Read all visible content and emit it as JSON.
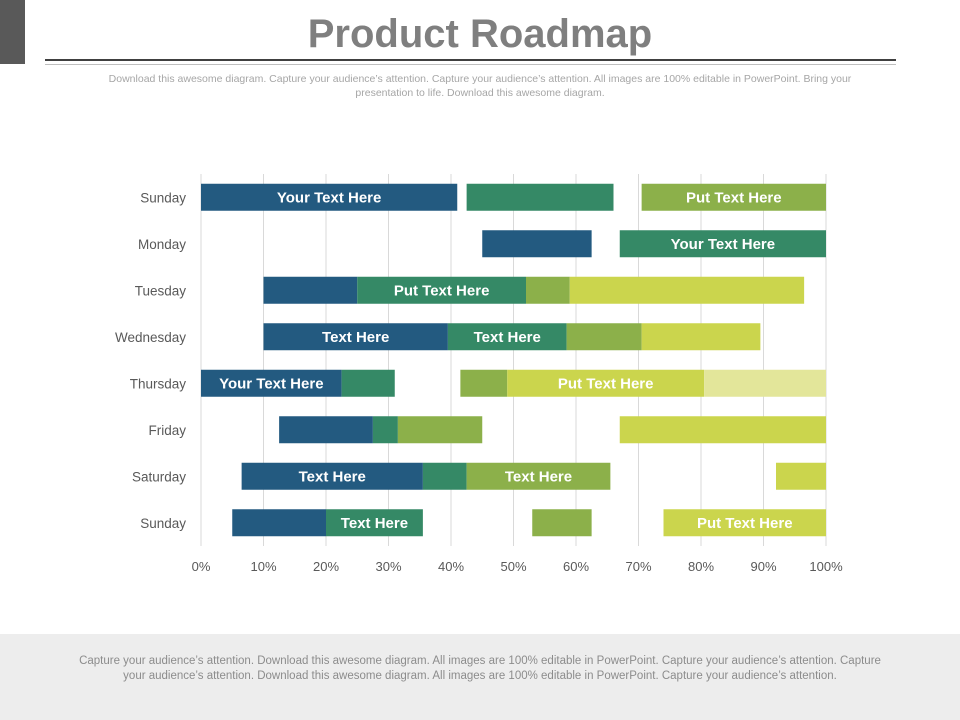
{
  "header": {
    "title": "Product Roadmap",
    "subtitle": "Download this awesome diagram. Capture your audience’s attention. Capture your audience’s attention. All images are 100% editable in PowerPoint. Bring your presentation to life. Download this awesome diagram."
  },
  "footer": {
    "text": "Capture your audience’s attention. Download this awesome diagram. All images are 100% editable in PowerPoint. Capture your audience’s attention. Capture your audience’s attention. Download this awesome diagram. All images are 100% editable in PowerPoint. Capture your audience’s attention."
  },
  "colors": {
    "blue": "#235a80",
    "green": "#358966",
    "olive": "#8cb04a",
    "lime": "#cbd54d",
    "pale": "#e3e69a"
  },
  "chart_data": {
    "type": "bar",
    "orientation": "horizontal",
    "stacked": true,
    "categories": [
      "Sunday",
      "Monday",
      "Tuesday",
      "Wednesday",
      "Thursday",
      "Friday",
      "Saturday",
      "Sunday"
    ],
    "x_ticks": [
      "0%",
      "10%",
      "20%",
      "30%",
      "40%",
      "50%",
      "60%",
      "70%",
      "80%",
      "90%",
      "100%"
    ],
    "xlim": [
      0,
      100
    ],
    "grid": "vertical",
    "rows": [
      {
        "segments": [
          {
            "start": 0,
            "end": 41,
            "color": "blue",
            "label": "Your Text Here"
          },
          {
            "start": 42.5,
            "end": 66,
            "color": "green",
            "label": ""
          },
          {
            "start": 70.5,
            "end": 100,
            "color": "olive",
            "label": "Put Text Here"
          }
        ]
      },
      {
        "segments": [
          {
            "start": 45,
            "end": 62.5,
            "color": "blue",
            "label": ""
          },
          {
            "start": 67,
            "end": 100,
            "color": "green",
            "label": "Your Text Here"
          }
        ]
      },
      {
        "segments": [
          {
            "start": 10,
            "end": 25,
            "color": "blue",
            "label": ""
          },
          {
            "start": 25,
            "end": 52,
            "color": "green",
            "label": "Put Text Here"
          },
          {
            "start": 52,
            "end": 59,
            "color": "olive",
            "label": ""
          },
          {
            "start": 59,
            "end": 96.5,
            "color": "lime",
            "label": ""
          }
        ]
      },
      {
        "segments": [
          {
            "start": 10,
            "end": 39.5,
            "color": "blue",
            "label": "Text Here"
          },
          {
            "start": 39.5,
            "end": 58.5,
            "color": "green",
            "label": "Text Here"
          },
          {
            "start": 58.5,
            "end": 70.5,
            "color": "olive",
            "label": ""
          },
          {
            "start": 70.5,
            "end": 89.5,
            "color": "lime",
            "label": ""
          }
        ]
      },
      {
        "segments": [
          {
            "start": 0,
            "end": 22.5,
            "color": "blue",
            "label": "Your Text Here"
          },
          {
            "start": 22.5,
            "end": 31,
            "color": "green",
            "label": ""
          },
          {
            "start": 41.5,
            "end": 49,
            "color": "olive",
            "label": ""
          },
          {
            "start": 49,
            "end": 80.5,
            "color": "lime",
            "label": "Put Text Here"
          },
          {
            "start": 80.5,
            "end": 100,
            "color": "pale",
            "label": ""
          }
        ]
      },
      {
        "segments": [
          {
            "start": 12.5,
            "end": 27.5,
            "color": "blue",
            "label": ""
          },
          {
            "start": 27.5,
            "end": 31.5,
            "color": "green",
            "label": ""
          },
          {
            "start": 31.5,
            "end": 45,
            "color": "olive",
            "label": ""
          },
          {
            "start": 67,
            "end": 100,
            "color": "lime",
            "label": ""
          }
        ]
      },
      {
        "segments": [
          {
            "start": 6.5,
            "end": 35.5,
            "color": "blue",
            "label": "Text Here"
          },
          {
            "start": 35.5,
            "end": 42.5,
            "color": "green",
            "label": ""
          },
          {
            "start": 42.5,
            "end": 65.5,
            "color": "olive",
            "label": "Text Here"
          },
          {
            "start": 92,
            "end": 100,
            "color": "lime",
            "label": ""
          }
        ]
      },
      {
        "segments": [
          {
            "start": 5,
            "end": 20,
            "color": "blue",
            "label": ""
          },
          {
            "start": 20,
            "end": 35.5,
            "color": "green",
            "label": "Text Here"
          },
          {
            "start": 53,
            "end": 62.5,
            "color": "olive",
            "label": ""
          },
          {
            "start": 74,
            "end": 100,
            "color": "lime",
            "label": "Put Text Here"
          }
        ]
      }
    ]
  }
}
